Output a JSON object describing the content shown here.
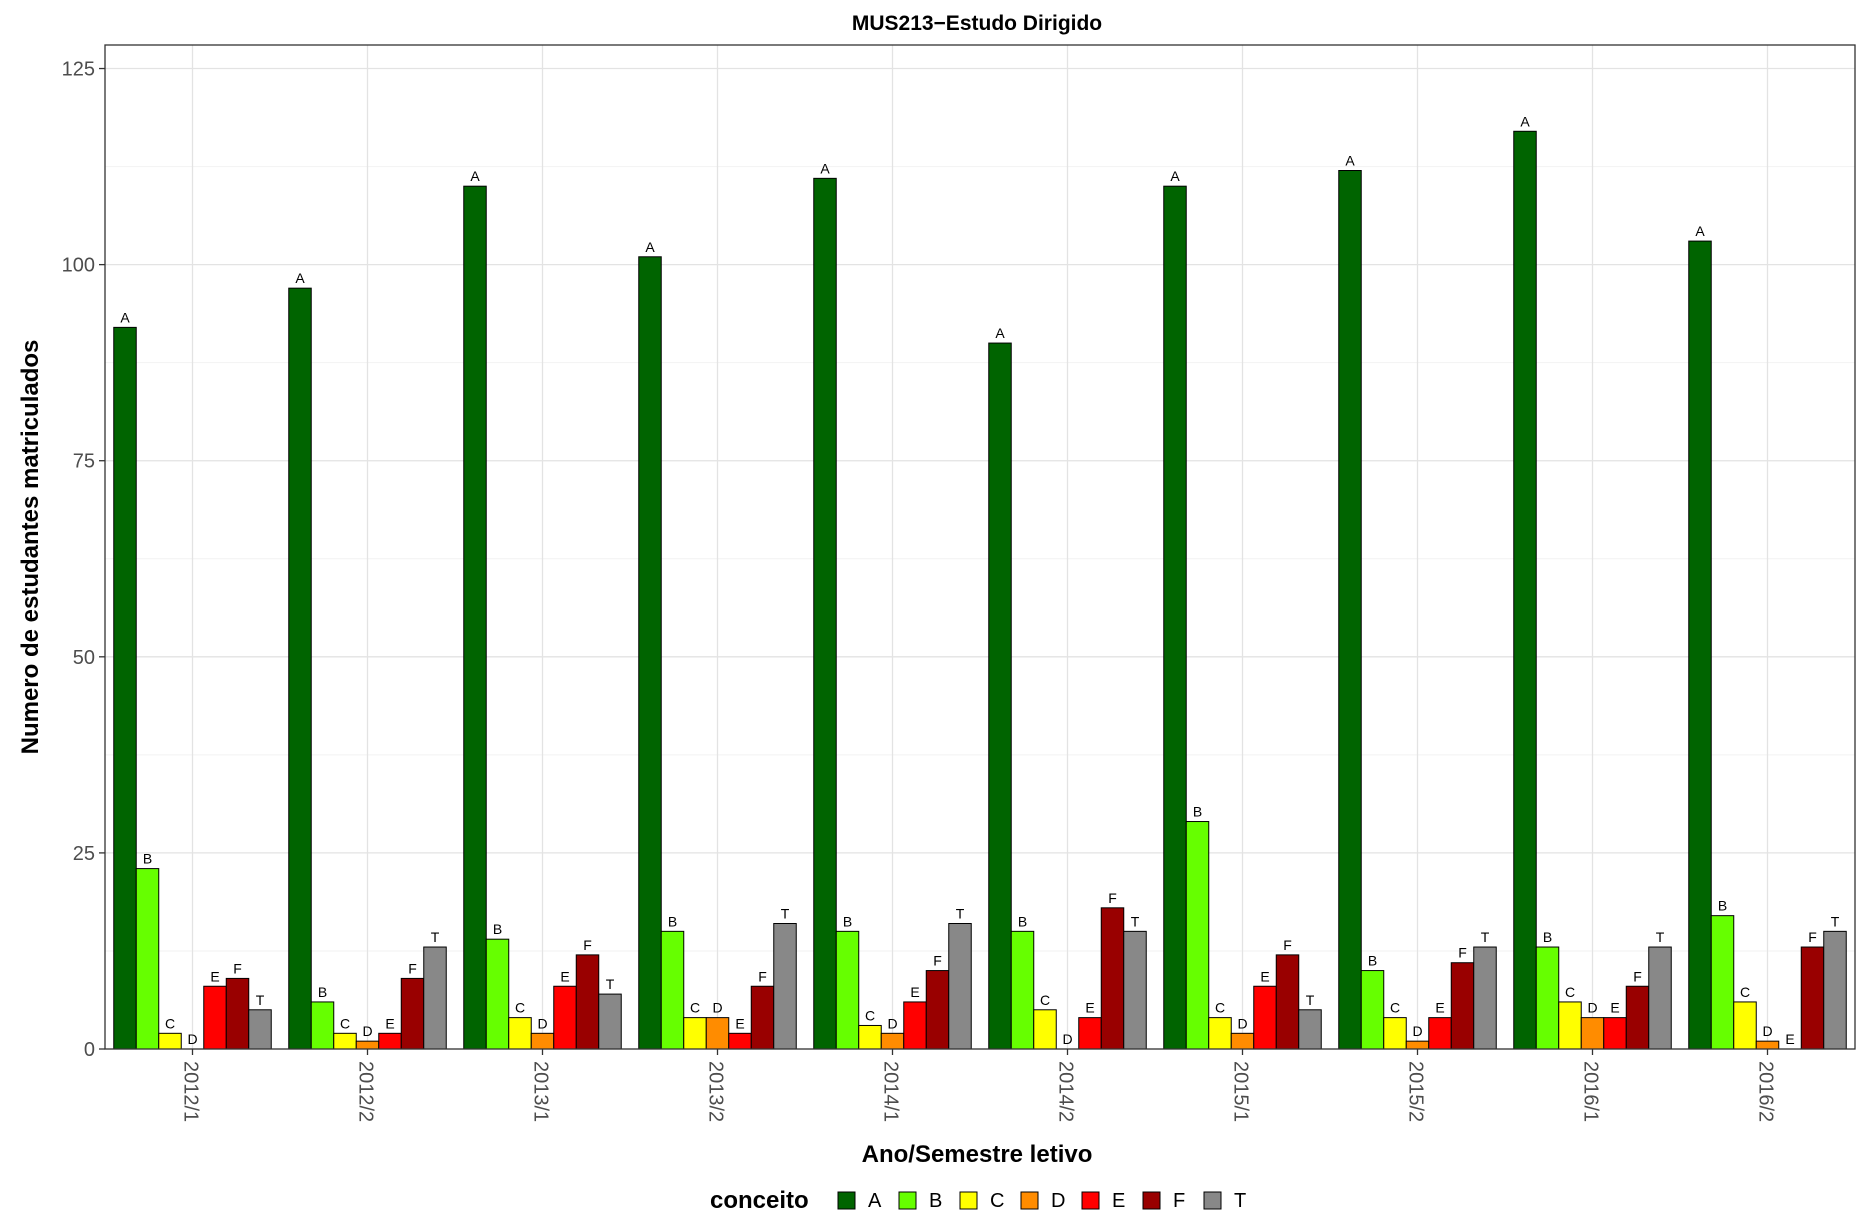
{
  "chart_data": {
    "type": "bar",
    "title": "MUS213−Estudo Dirigido",
    "xlabel": "Ano/Semestre letivo",
    "ylabel": "Numero de estudantes matriculados",
    "ylim": [
      0,
      128
    ],
    "yticks": [
      0,
      25,
      50,
      75,
      100,
      125
    ],
    "grid": true,
    "legend_position": "bottom",
    "legend_title": "conceito",
    "categories": [
      "2012/1",
      "2012/2",
      "2013/1",
      "2013/2",
      "2014/1",
      "2014/2",
      "2015/1",
      "2015/2",
      "2016/1",
      "2016/2"
    ],
    "series": [
      {
        "name": "A",
        "color": "#006400",
        "values": [
          92,
          97,
          110,
          101,
          111,
          90,
          110,
          112,
          117,
          103
        ]
      },
      {
        "name": "B",
        "color": "#66FF00",
        "values": [
          23,
          6,
          14,
          15,
          15,
          15,
          29,
          10,
          13,
          17
        ]
      },
      {
        "name": "C",
        "color": "#FFFF00",
        "values": [
          2,
          2,
          4,
          4,
          3,
          5,
          4,
          4,
          6,
          6
        ]
      },
      {
        "name": "D",
        "color": "#FF8C00",
        "values": [
          0,
          1,
          2,
          4,
          2,
          0,
          2,
          1,
          4,
          1
        ]
      },
      {
        "name": "E",
        "color": "#FF0000",
        "values": [
          8,
          2,
          8,
          2,
          6,
          4,
          8,
          4,
          4,
          0
        ]
      },
      {
        "name": "F",
        "color": "#990000",
        "values": [
          9,
          9,
          12,
          8,
          10,
          18,
          12,
          11,
          8,
          13
        ]
      },
      {
        "name": "T",
        "color": "#888888",
        "values": [
          5,
          13,
          7,
          16,
          16,
          15,
          5,
          13,
          13,
          15
        ]
      }
    ]
  }
}
